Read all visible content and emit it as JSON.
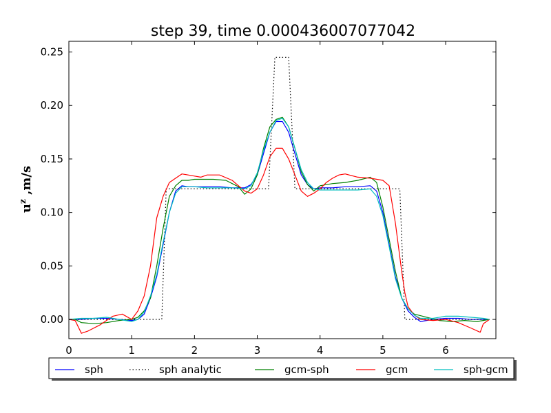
{
  "chart_data": {
    "type": "line",
    "title": "step 39, time 0.000436007077042",
    "xlabel": "",
    "ylabel": "u^z ,m/s",
    "xlim": [
      0,
      6.8
    ],
    "ylim": [
      -0.018,
      0.26
    ],
    "xticks": [
      0,
      1,
      2,
      3,
      4,
      5,
      6
    ],
    "yticks": [
      0.0,
      0.05,
      0.1,
      0.15,
      0.2,
      0.25
    ],
    "ytick_labels": [
      "0.00",
      "0.05",
      "0.10",
      "0.15",
      "0.20",
      "0.25"
    ],
    "grid": false,
    "legend_position": "bottom-outside",
    "series": [
      {
        "name": "sph",
        "color": "#0000ff",
        "style": "solid",
        "x": [
          0,
          0.2,
          0.4,
          0.6,
          0.8,
          1.0,
          1.1,
          1.2,
          1.3,
          1.4,
          1.5,
          1.6,
          1.7,
          1.8,
          1.9,
          2.0,
          2.2,
          2.4,
          2.6,
          2.8,
          2.9,
          3.0,
          3.1,
          3.2,
          3.3,
          3.4,
          3.5,
          3.6,
          3.7,
          3.8,
          3.9,
          4.0,
          4.2,
          4.4,
          4.6,
          4.8,
          4.9,
          5.0,
          5.1,
          5.2,
          5.3,
          5.4,
          5.5,
          5.6,
          5.8,
          6.0,
          6.2,
          6.4,
          6.6,
          6.7
        ],
        "y": [
          0.0,
          0.0,
          0.001,
          0.001,
          0.0,
          -0.001,
          0.0,
          0.005,
          0.02,
          0.04,
          0.07,
          0.1,
          0.12,
          0.125,
          0.124,
          0.124,
          0.124,
          0.124,
          0.123,
          0.123,
          0.126,
          0.135,
          0.155,
          0.175,
          0.185,
          0.185,
          0.175,
          0.155,
          0.135,
          0.126,
          0.122,
          0.123,
          0.123,
          0.124,
          0.124,
          0.125,
          0.12,
          0.1,
          0.07,
          0.04,
          0.02,
          0.008,
          0.002,
          -0.002,
          0.0,
          0.001,
          0.001,
          0.0,
          0.0,
          0.0
        ]
      },
      {
        "name": "sph analytic",
        "color": "#000000",
        "style": "dotted",
        "x": [
          0,
          1.48,
          1.55,
          3.18,
          3.28,
          3.5,
          3.6,
          5.27,
          5.35,
          6.7
        ],
        "y": [
          0.0,
          0.0,
          0.122,
          0.122,
          0.245,
          0.245,
          0.122,
          0.122,
          0.0,
          0.0
        ]
      },
      {
        "name": "gcm-sph",
        "color": "#008000",
        "style": "solid",
        "x": [
          0,
          0.1,
          0.2,
          0.4,
          0.6,
          0.8,
          1.0,
          1.1,
          1.2,
          1.3,
          1.4,
          1.5,
          1.6,
          1.7,
          1.8,
          1.9,
          2.0,
          2.1,
          2.3,
          2.5,
          2.7,
          2.8,
          2.9,
          3.0,
          3.1,
          3.2,
          3.3,
          3.4,
          3.5,
          3.6,
          3.7,
          3.8,
          3.9,
          4.0,
          4.2,
          4.4,
          4.6,
          4.8,
          4.9,
          5.0,
          5.1,
          5.2,
          5.3,
          5.4,
          5.5,
          5.7,
          5.9,
          6.1,
          6.3,
          6.5,
          6.7
        ],
        "y": [
          0.0,
          0.0,
          -0.003,
          -0.004,
          -0.003,
          -0.001,
          0.0,
          0.002,
          0.008,
          0.02,
          0.05,
          0.085,
          0.115,
          0.125,
          0.13,
          0.13,
          0.131,
          0.131,
          0.131,
          0.13,
          0.124,
          0.117,
          0.122,
          0.135,
          0.16,
          0.18,
          0.187,
          0.189,
          0.18,
          0.16,
          0.138,
          0.126,
          0.12,
          0.125,
          0.127,
          0.128,
          0.13,
          0.133,
          0.128,
          0.105,
          0.075,
          0.045,
          0.02,
          0.01,
          0.005,
          0.002,
          -0.001,
          -0.002,
          -0.001,
          -0.002,
          0.0
        ]
      },
      {
        "name": "gcm",
        "color": "#ff0000",
        "style": "solid",
        "x": [
          0,
          0.1,
          0.2,
          0.3,
          0.5,
          0.7,
          0.85,
          1.0,
          1.1,
          1.2,
          1.3,
          1.4,
          1.5,
          1.6,
          1.7,
          1.8,
          1.9,
          2.0,
          2.1,
          2.2,
          2.3,
          2.4,
          2.6,
          2.7,
          2.8,
          2.9,
          3.0,
          3.1,
          3.2,
          3.3,
          3.4,
          3.5,
          3.6,
          3.7,
          3.8,
          3.9,
          4.0,
          4.1,
          4.2,
          4.3,
          4.4,
          4.6,
          4.8,
          5.0,
          5.1,
          5.2,
          5.3,
          5.35,
          5.4,
          5.5,
          5.6,
          5.8,
          6.0,
          6.2,
          6.4,
          6.55,
          6.6,
          6.7
        ],
        "y": [
          0.0,
          -0.001,
          -0.013,
          -0.011,
          -0.005,
          0.003,
          0.005,
          0.0,
          0.008,
          0.022,
          0.05,
          0.095,
          0.115,
          0.128,
          0.132,
          0.136,
          0.135,
          0.134,
          0.133,
          0.135,
          0.135,
          0.135,
          0.13,
          0.125,
          0.12,
          0.118,
          0.122,
          0.135,
          0.152,
          0.16,
          0.16,
          0.15,
          0.135,
          0.12,
          0.115,
          0.118,
          0.122,
          0.128,
          0.132,
          0.135,
          0.136,
          0.133,
          0.132,
          0.13,
          0.125,
          0.09,
          0.045,
          0.025,
          0.012,
          0.004,
          0.0,
          -0.001,
          0.0,
          -0.003,
          -0.008,
          -0.012,
          -0.004,
          0.0
        ]
      },
      {
        "name": "sph-gcm",
        "color": "#00bfbf",
        "style": "solid",
        "x": [
          0,
          0.2,
          0.4,
          0.6,
          0.8,
          1.0,
          1.1,
          1.2,
          1.3,
          1.4,
          1.5,
          1.6,
          1.7,
          1.8,
          1.9,
          2.0,
          2.2,
          2.4,
          2.6,
          2.8,
          2.9,
          3.0,
          3.1,
          3.2,
          3.3,
          3.4,
          3.5,
          3.6,
          3.7,
          3.8,
          3.9,
          4.0,
          4.2,
          4.4,
          4.6,
          4.8,
          4.9,
          5.0,
          5.1,
          5.2,
          5.3,
          5.4,
          5.5,
          5.6,
          5.8,
          6.0,
          6.2,
          6.4,
          6.6,
          6.7
        ],
        "y": [
          0.0,
          0.001,
          0.001,
          0.002,
          0.0,
          -0.002,
          0.0,
          0.007,
          0.022,
          0.042,
          0.072,
          0.1,
          0.118,
          0.124,
          0.124,
          0.124,
          0.123,
          0.123,
          0.123,
          0.122,
          0.125,
          0.137,
          0.158,
          0.175,
          0.186,
          0.188,
          0.18,
          0.16,
          0.14,
          0.128,
          0.122,
          0.121,
          0.121,
          0.121,
          0.121,
          0.122,
          0.115,
          0.097,
          0.068,
          0.038,
          0.02,
          0.01,
          0.004,
          0.001,
          0.001,
          0.003,
          0.003,
          0.002,
          0.001,
          0.0
        ]
      }
    ]
  }
}
